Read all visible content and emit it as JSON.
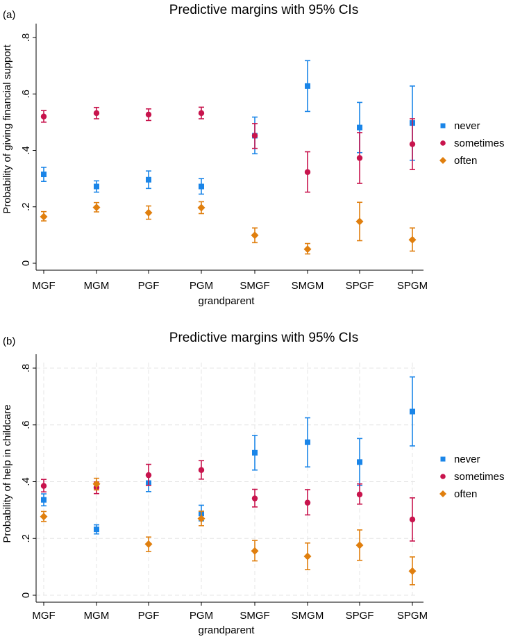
{
  "chart_data": [
    {
      "type": "scatter",
      "panel_label": "(a)",
      "title": "Predictive margins with 95% CIs",
      "xlabel": "grandparent",
      "ylabel": "Probability of giving financial support",
      "categories": [
        "MGF",
        "MGM",
        "PGF",
        "PGM",
        "SMGF",
        "SMGM",
        "SPGF",
        "SPGM"
      ],
      "yticks": [
        ".8",
        ".6",
        ".4",
        ".2",
        "0"
      ],
      "ytick_values": [
        0.8,
        0.6,
        0.4,
        0.2,
        0
      ],
      "ylim": [
        0,
        0.8
      ],
      "grid": false,
      "legend_position": "right",
      "series": [
        {
          "name": "never",
          "marker": "square",
          "color": "#1a85e8",
          "values": [
            0.315,
            0.272,
            0.296,
            0.272,
            0.452,
            0.628,
            0.481,
            0.497
          ],
          "ci_low": [
            0.29,
            0.252,
            0.265,
            0.245,
            0.388,
            0.538,
            0.392,
            0.365
          ],
          "ci_high": [
            0.34,
            0.292,
            0.327,
            0.3,
            0.518,
            0.718,
            0.57,
            0.628
          ]
        },
        {
          "name": "sometimes",
          "marker": "circle",
          "color": "#c8144d",
          "values": [
            0.52,
            0.532,
            0.527,
            0.532,
            0.452,
            0.323,
            0.373,
            0.422
          ],
          "ci_low": [
            0.5,
            0.512,
            0.506,
            0.512,
            0.407,
            0.252,
            0.283,
            0.332
          ],
          "ci_high": [
            0.541,
            0.552,
            0.547,
            0.553,
            0.495,
            0.395,
            0.463,
            0.512
          ]
        },
        {
          "name": "often",
          "marker": "diamond",
          "color": "#e07f0e",
          "values": [
            0.165,
            0.198,
            0.179,
            0.197,
            0.099,
            0.05,
            0.148,
            0.083
          ],
          "ci_low": [
            0.15,
            0.182,
            0.156,
            0.176,
            0.073,
            0.033,
            0.08,
            0.043
          ],
          "ci_high": [
            0.183,
            0.215,
            0.203,
            0.218,
            0.125,
            0.07,
            0.216,
            0.125
          ]
        }
      ]
    },
    {
      "type": "scatter",
      "panel_label": "(b)",
      "title": "Predictive margins with 95% CIs",
      "xlabel": "grandparent",
      "ylabel": "Probability of help in childcare",
      "categories": [
        "MGF",
        "MGM",
        "PGF",
        "PGM",
        "SMGF",
        "SMGM",
        "SPGF",
        "SPGM"
      ],
      "yticks": [
        ".8",
        ".6",
        ".4",
        ".2",
        "0"
      ],
      "ytick_values": [
        0.8,
        0.6,
        0.4,
        0.2,
        0
      ],
      "ylim": [
        0,
        0.8
      ],
      "grid": true,
      "legend_position": "right",
      "series": [
        {
          "name": "never",
          "marker": "square",
          "color": "#1a85e8",
          "values": [
            0.336,
            0.232,
            0.395,
            0.288,
            0.502,
            0.539,
            0.469,
            0.647
          ],
          "ci_low": [
            0.315,
            0.216,
            0.365,
            0.262,
            0.441,
            0.452,
            0.387,
            0.526
          ],
          "ci_high": [
            0.357,
            0.248,
            0.426,
            0.317,
            0.563,
            0.625,
            0.552,
            0.769
          ]
        },
        {
          "name": "sometimes",
          "marker": "circle",
          "color": "#c8144d",
          "values": [
            0.385,
            0.379,
            0.423,
            0.441,
            0.341,
            0.326,
            0.355,
            0.267
          ],
          "ci_low": [
            0.364,
            0.358,
            0.387,
            0.409,
            0.311,
            0.283,
            0.321,
            0.191
          ],
          "ci_high": [
            0.408,
            0.399,
            0.461,
            0.474,
            0.373,
            0.372,
            0.392,
            0.343
          ]
        },
        {
          "name": "often",
          "marker": "diamond",
          "color": "#e07f0e",
          "values": [
            0.277,
            0.392,
            0.18,
            0.27,
            0.156,
            0.137,
            0.176,
            0.085
          ],
          "ci_low": [
            0.26,
            0.371,
            0.154,
            0.245,
            0.121,
            0.09,
            0.123,
            0.037
          ],
          "ci_high": [
            0.295,
            0.412,
            0.205,
            0.296,
            0.193,
            0.184,
            0.23,
            0.135
          ]
        }
      ]
    }
  ]
}
